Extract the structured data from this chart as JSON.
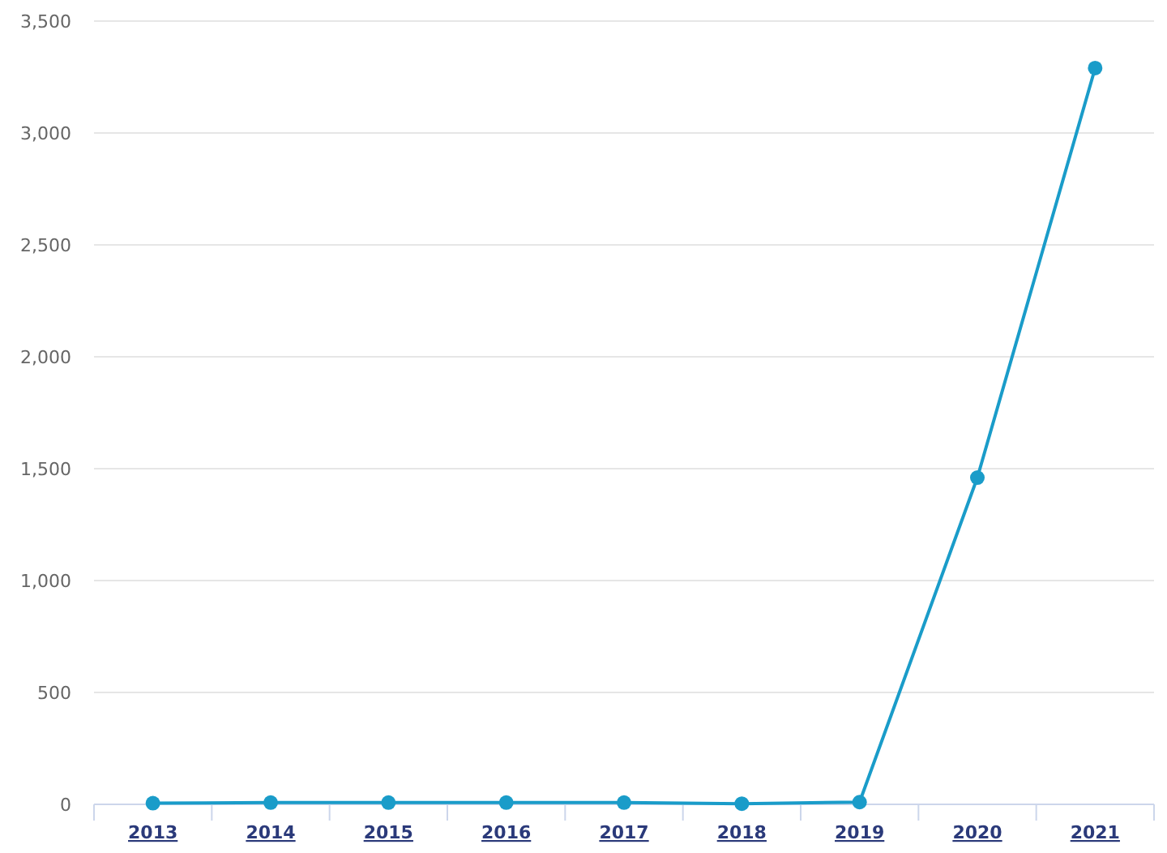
{
  "chart_data": {
    "type": "line",
    "categories": [
      "2013",
      "2014",
      "2015",
      "2016",
      "2017",
      "2018",
      "2019",
      "2020",
      "2021"
    ],
    "series": [
      {
        "color": "#1a9cc9",
        "values": [
          5,
          8,
          8,
          8,
          8,
          3,
          10,
          1460,
          3290
        ]
      }
    ],
    "ylim": [
      0,
      3500
    ],
    "yticks": [
      {
        "value": 0,
        "label": "0"
      },
      {
        "value": 500,
        "label": "500"
      },
      {
        "value": 1000,
        "label": "1,000"
      },
      {
        "value": 1500,
        "label": "1,500"
      },
      {
        "value": 2000,
        "label": "2,000"
      },
      {
        "value": 2500,
        "label": "2,500"
      },
      {
        "value": 3000,
        "label": "3,000"
      },
      {
        "value": 3500,
        "label": "3,500"
      }
    ],
    "grid": "y",
    "marker": "circle"
  }
}
